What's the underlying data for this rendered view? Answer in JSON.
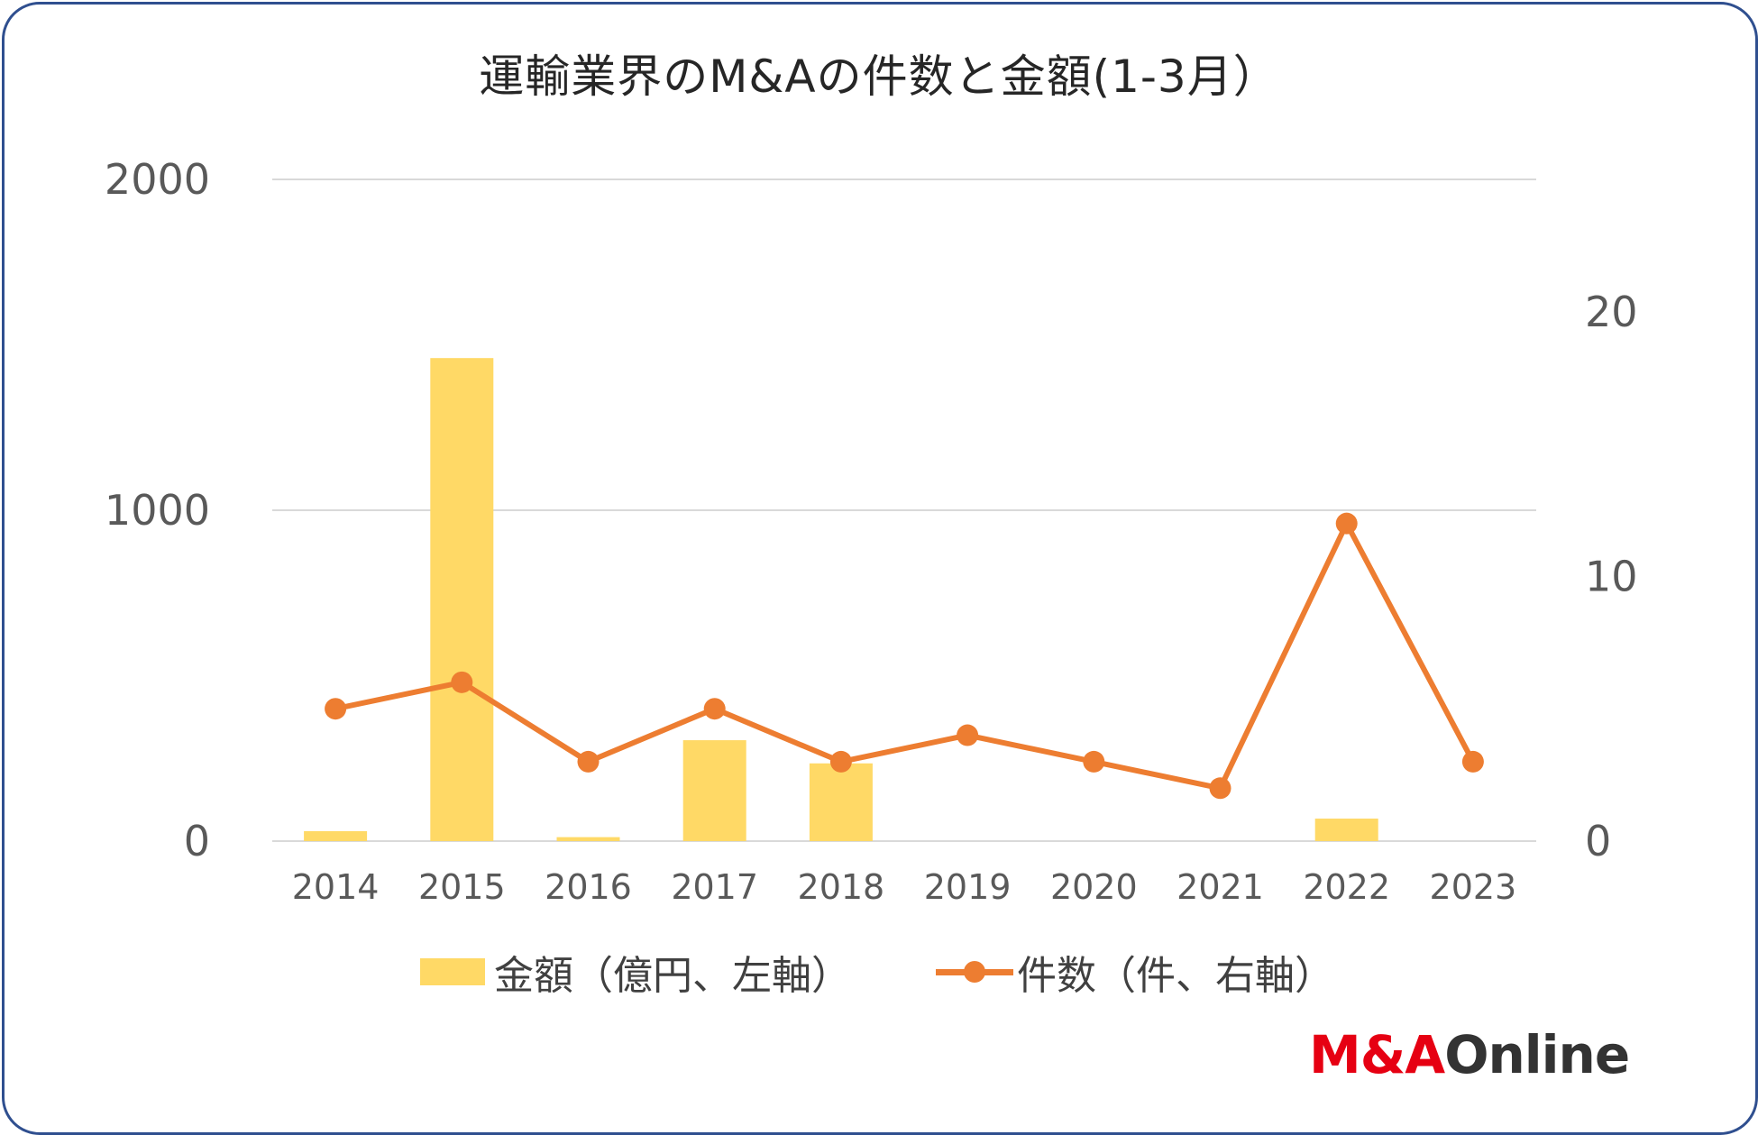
{
  "chart_data": {
    "type": "bar+line",
    "title": "運輸業界のM&Aの件数と金額(1-3月）",
    "categories": [
      "2014",
      "2015",
      "2016",
      "2017",
      "2018",
      "2019",
      "2020",
      "2021",
      "2022",
      "2023"
    ],
    "series": [
      {
        "name": "金額（億円、左軸）",
        "type": "bar",
        "axis": "left",
        "values": [
          30,
          1460,
          12,
          305,
          235,
          0,
          0,
          0,
          68,
          0
        ]
      },
      {
        "name": "件数（件、右軸）",
        "type": "line",
        "axis": "right",
        "values": [
          5,
          6,
          3,
          5,
          3,
          4,
          3,
          2,
          12,
          3
        ]
      }
    ],
    "y_left": {
      "ticks": [
        "0",
        "1000",
        "2000"
      ],
      "ylim": [
        0,
        2000
      ]
    },
    "y_right": {
      "ticks": [
        "0",
        "10",
        "20"
      ],
      "ylim": [
        0,
        25
      ]
    },
    "grid": true,
    "legend": "bottom"
  },
  "colors": {
    "bar": "#ffd966",
    "line": "#ed7d31",
    "grid": "#d9d9d9",
    "tick_text": "#595959",
    "frame": "#2f4f8f",
    "logo_red": "#e60012",
    "logo_dark": "#333333"
  },
  "logo": {
    "part1": "M&A",
    "part2": "Online"
  }
}
